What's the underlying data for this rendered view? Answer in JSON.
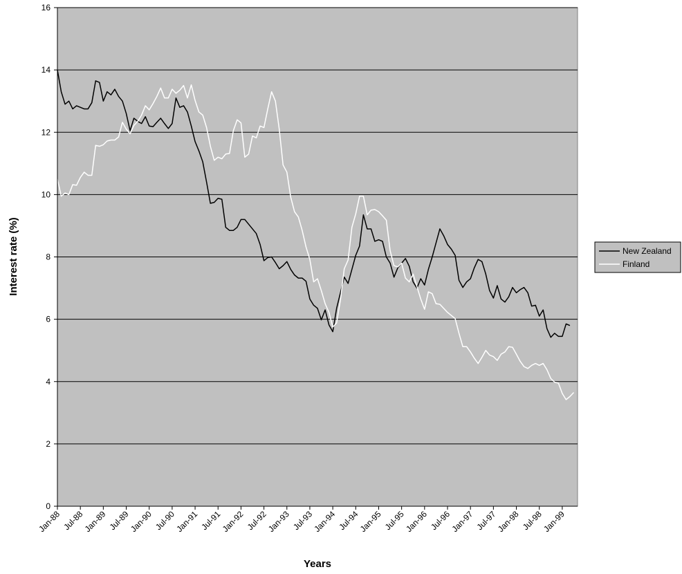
{
  "chart_data": {
    "type": "line",
    "title": "",
    "xlabel": "Years",
    "ylabel": "Interest rate (%)",
    "ylim": [
      0,
      16
    ],
    "yticks": [
      "0",
      "2",
      "4",
      "6",
      "8",
      "10",
      "12",
      "14",
      "16"
    ],
    "x_tick_labels": [
      "Jan-88",
      "Jul-88",
      "Jan-89",
      "Jul-89",
      "Jan-90",
      "Jul-90",
      "Jan-91",
      "Jul-91",
      "Jan-92",
      "Jul-92",
      "Jan-93",
      "Jul-93",
      "Jan-94",
      "Jul-94",
      "Jan-95",
      "Jul-95",
      "Jan-96",
      "Jul-96",
      "Jan-97",
      "Jul-97",
      "Jan-98",
      "Jul-98",
      "Jan-99"
    ],
    "x_start": "Jan-88",
    "x_frequency": "monthly",
    "grid": "horizontal",
    "legend_position": "right",
    "colors": {
      "plot_background": "#c0c0c0",
      "grid": "#000000",
      "New Zealand": "#000000",
      "Finland": "#ffffff"
    },
    "series": [
      {
        "name": "New Zealand",
        "color": "#000000",
        "values": [
          14.0,
          13.3,
          12.9,
          13.0,
          12.75,
          12.85,
          12.8,
          12.75,
          12.75,
          12.95,
          13.65,
          13.6,
          13.0,
          13.3,
          13.2,
          13.38,
          13.15,
          13.0,
          12.6,
          12.05,
          12.45,
          12.35,
          12.28,
          12.5,
          12.2,
          12.18,
          12.32,
          12.45,
          12.28,
          12.12,
          12.28,
          13.1,
          12.8,
          12.85,
          12.65,
          12.2,
          11.7,
          11.4,
          11.05,
          10.4,
          9.72,
          9.75,
          9.88,
          9.85,
          8.95,
          8.85,
          8.85,
          8.95,
          9.2,
          9.2,
          9.05,
          8.9,
          8.75,
          8.4,
          7.88,
          7.98,
          8.0,
          7.82,
          7.62,
          7.72,
          7.85,
          7.6,
          7.42,
          7.32,
          7.32,
          7.22,
          6.65,
          6.45,
          6.35,
          5.98,
          6.3,
          5.82,
          5.6,
          6.35,
          6.85,
          7.35,
          7.15,
          7.6,
          8.05,
          8.35,
          9.35,
          8.9,
          8.9,
          8.5,
          8.55,
          8.5,
          8.0,
          7.8,
          7.35,
          7.65,
          7.8,
          7.95,
          7.7,
          7.2,
          7.0,
          7.3,
          7.1,
          7.6,
          8.0,
          8.45,
          8.9,
          8.68,
          8.4,
          8.25,
          8.05,
          7.25,
          7.02,
          7.2,
          7.3,
          7.65,
          7.92,
          7.85,
          7.45,
          6.92,
          6.68,
          7.08,
          6.65,
          6.55,
          6.72,
          7.02,
          6.85,
          6.95,
          7.02,
          6.85,
          6.42,
          6.45,
          6.1,
          6.3,
          5.7,
          5.42,
          5.55,
          5.45,
          5.45,
          5.85,
          5.8
        ]
      },
      {
        "name": "Finland",
        "color": "#ffffff",
        "values": [
          10.5,
          9.95,
          10.05,
          10.0,
          10.32,
          10.3,
          10.55,
          10.72,
          10.62,
          10.62,
          11.58,
          11.55,
          11.6,
          11.72,
          11.75,
          11.75,
          11.85,
          12.32,
          12.1,
          11.95,
          12.22,
          12.35,
          12.55,
          12.85,
          12.72,
          12.92,
          13.15,
          13.42,
          13.1,
          13.1,
          13.38,
          13.25,
          13.35,
          13.5,
          13.1,
          13.52,
          13.02,
          12.65,
          12.55,
          12.15,
          11.55,
          11.1,
          11.2,
          11.15,
          11.3,
          11.32,
          12.05,
          12.4,
          12.3,
          11.2,
          11.3,
          11.88,
          11.82,
          12.2,
          12.15,
          12.75,
          13.3,
          13.0,
          12.1,
          10.95,
          10.72,
          9.92,
          9.45,
          9.28,
          8.85,
          8.32,
          7.92,
          7.2,
          7.3,
          6.92,
          6.5,
          6.22,
          5.75,
          5.88,
          6.62,
          7.62,
          7.9,
          8.95,
          9.38,
          9.95,
          9.95,
          9.35,
          9.5,
          9.52,
          9.45,
          9.32,
          9.18,
          8.2,
          7.72,
          7.68,
          7.8,
          7.32,
          7.2,
          7.45,
          7.05,
          6.65,
          6.32,
          6.88,
          6.82,
          6.5,
          6.48,
          6.35,
          6.22,
          6.12,
          6.02,
          5.55,
          5.12,
          5.12,
          4.95,
          4.75,
          4.58,
          4.78,
          5.0,
          4.85,
          4.8,
          4.68,
          4.88,
          4.95,
          5.12,
          5.1,
          4.88,
          4.65,
          4.48,
          4.42,
          4.52,
          4.58,
          4.52,
          4.58,
          4.38,
          4.1,
          3.98,
          3.95,
          3.62,
          3.42,
          3.52,
          3.65
        ]
      }
    ]
  }
}
